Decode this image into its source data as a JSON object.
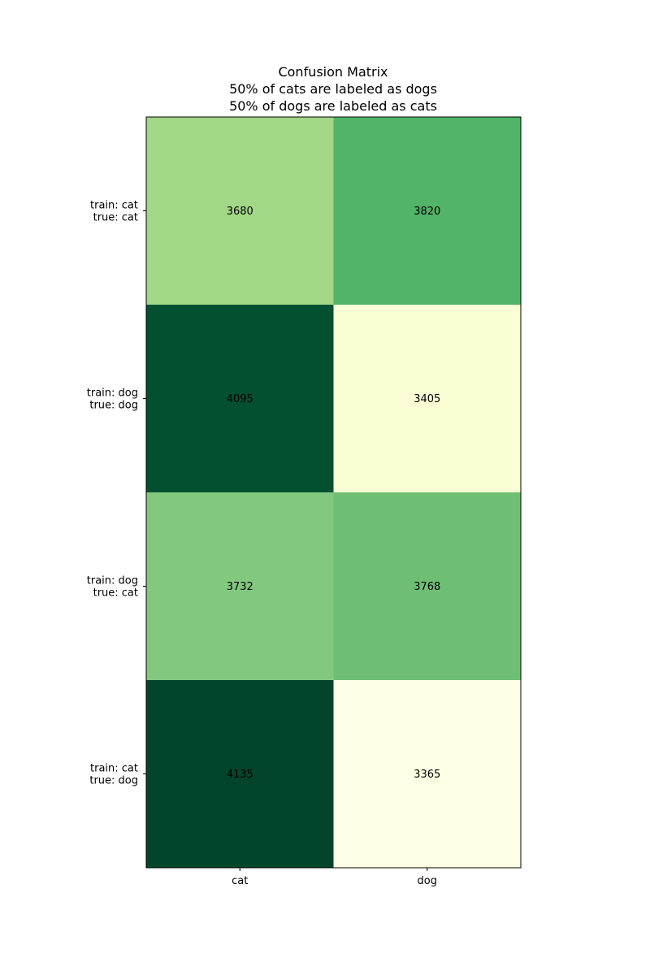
{
  "chart_data": {
    "type": "heatmap",
    "title_lines": [
      "Confusion Matrix",
      "50% of cats are labeled as dogs",
      "50% of dogs are labeled as cats"
    ],
    "x_categories": [
      "cat",
      "dog"
    ],
    "y_categories": [
      [
        "train: cat",
        "true: cat"
      ],
      [
        "train: dog",
        "true: dog"
      ],
      [
        "train: dog",
        "true: cat"
      ],
      [
        "train: cat",
        "true: dog"
      ]
    ],
    "values": [
      [
        3680,
        3820
      ],
      [
        4095,
        3405
      ],
      [
        3732,
        3768
      ],
      [
        4135,
        3365
      ]
    ],
    "colormap": "YlGn",
    "color_range": [
      3365,
      4135
    ],
    "cell_colors": [
      [
        "#a2d788",
        "#52b468"
      ],
      [
        "#025030",
        "#fbfed4"
      ],
      [
        "#82c97f",
        "#6ebf73"
      ],
      [
        "#02452b",
        "#ffffe5"
      ]
    ]
  }
}
